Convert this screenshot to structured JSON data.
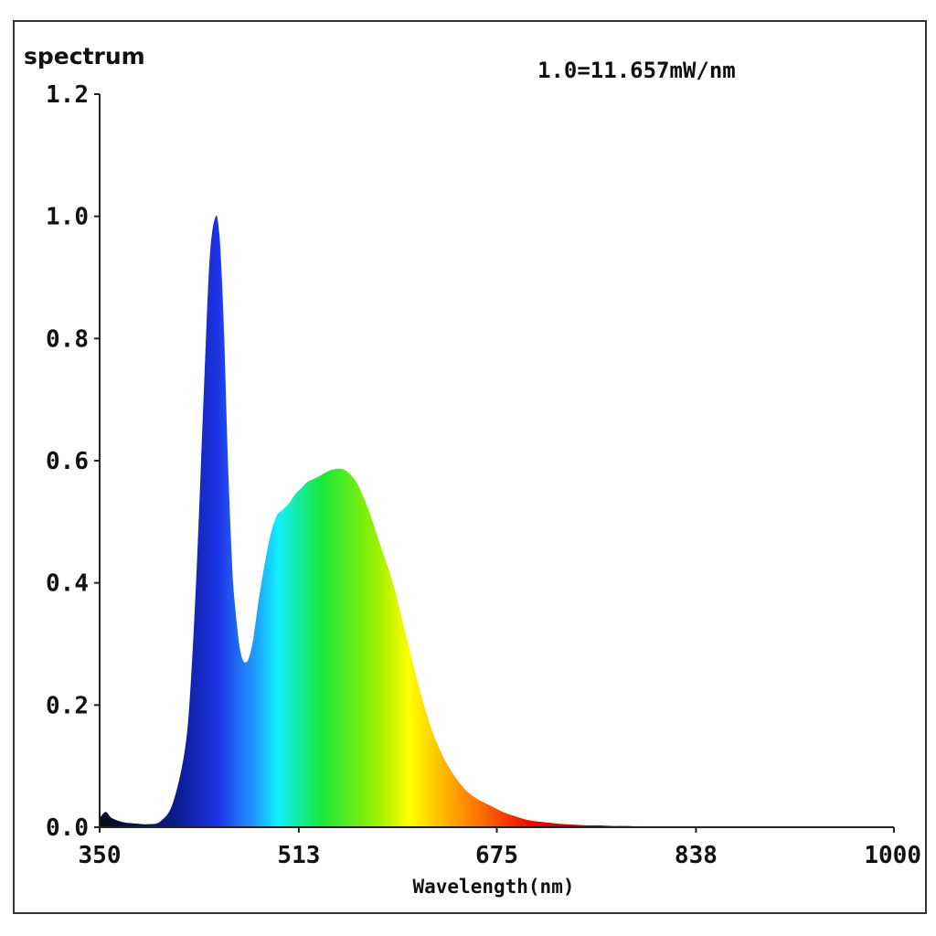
{
  "chart_data": {
    "type": "area",
    "title": "",
    "ylabel": "spectrum",
    "xlabel": "Wavelength(nm)",
    "annotation": "1.0=11.657mW/nm",
    "xlim": [
      350,
      1000
    ],
    "ylim": [
      0,
      1.2
    ],
    "x_ticks": [
      "350",
      "513",
      "675",
      "838",
      "1000"
    ],
    "y_ticks": [
      "0.0",
      "0.2",
      "0.4",
      "0.6",
      "0.8",
      "1.0",
      "1.2"
    ],
    "fill": "visible-spectrum gradient",
    "series": [
      {
        "x": [
          350,
          355,
          360,
          370,
          380,
          390,
          400,
          410,
          420,
          425,
          430,
          435,
          440,
          445,
          448,
          450,
          452,
          455,
          458,
          460,
          465,
          470,
          475,
          480,
          485,
          490,
          495,
          500,
          505,
          510,
          515,
          520,
          525,
          530,
          540,
          550,
          560,
          570,
          580,
          590,
          600,
          610,
          620,
          630,
          640,
          650,
          660,
          670,
          680,
          690,
          700,
          710,
          720,
          730,
          740,
          750,
          760,
          770,
          780,
          800,
          850,
          900,
          950,
          1000
        ],
        "y": [
          0.015,
          0.025,
          0.015,
          0.008,
          0.006,
          0.005,
          0.01,
          0.04,
          0.13,
          0.25,
          0.45,
          0.7,
          0.93,
          1.0,
          0.97,
          0.9,
          0.8,
          0.6,
          0.45,
          0.38,
          0.29,
          0.27,
          0.3,
          0.37,
          0.43,
          0.48,
          0.51,
          0.52,
          0.53,
          0.545,
          0.555,
          0.565,
          0.57,
          0.575,
          0.585,
          0.585,
          0.565,
          0.52,
          0.46,
          0.4,
          0.32,
          0.24,
          0.17,
          0.12,
          0.085,
          0.06,
          0.045,
          0.035,
          0.025,
          0.018,
          0.012,
          0.009,
          0.007,
          0.005,
          0.004,
          0.003,
          0.003,
          0.002,
          0.002,
          0.001,
          0.001,
          0.0,
          0.0,
          0.0
        ]
      }
    ]
  }
}
